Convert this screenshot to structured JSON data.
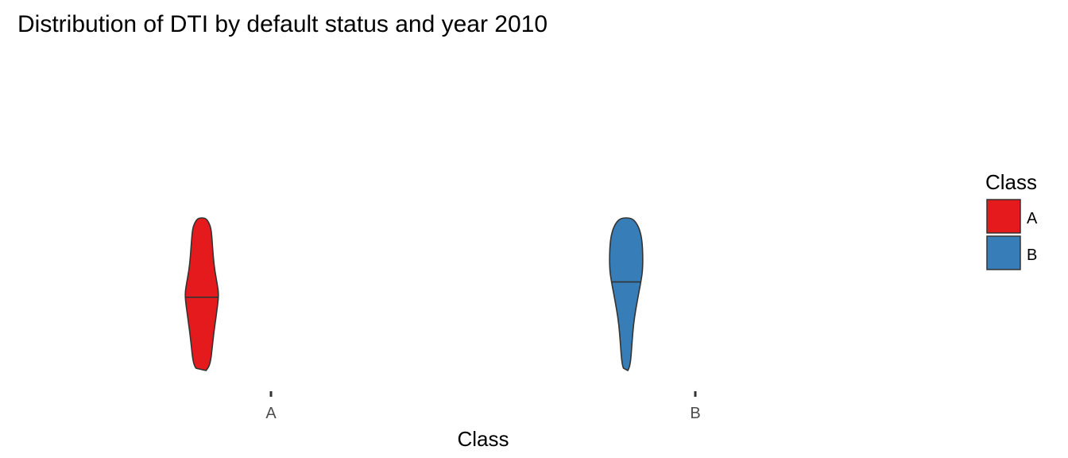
{
  "chart_data": {
    "type": "violin",
    "title": "Distribution of DTI by default status and year 2010",
    "xlabel": "Class",
    "ylabel": "",
    "categories": [
      "A",
      "B"
    ],
    "grid": false,
    "legend": {
      "title": "Class",
      "position": "right",
      "entries": [
        {
          "label": "A",
          "color": "#e41a1c"
        },
        {
          "label": "B",
          "color": "#377eb8"
        }
      ]
    },
    "series": [
      {
        "category": "A",
        "color": "#e41a1c",
        "median": 0.48,
        "density": [
          {
            "y": 0.0,
            "w": 0.25
          },
          {
            "y": 0.03,
            "w": 0.45
          },
          {
            "y": 0.08,
            "w": 0.55
          },
          {
            "y": 0.15,
            "w": 0.62
          },
          {
            "y": 0.25,
            "w": 0.72
          },
          {
            "y": 0.35,
            "w": 0.85
          },
          {
            "y": 0.45,
            "w": 0.97
          },
          {
            "y": 0.5,
            "w": 1.0
          },
          {
            "y": 0.55,
            "w": 0.95
          },
          {
            "y": 0.65,
            "w": 0.78
          },
          {
            "y": 0.75,
            "w": 0.68
          },
          {
            "y": 0.85,
            "w": 0.62
          },
          {
            "y": 0.93,
            "w": 0.55
          },
          {
            "y": 0.97,
            "w": 0.42
          },
          {
            "y": 1.0,
            "w": 0.22
          }
        ]
      },
      {
        "category": "B",
        "color": "#377eb8",
        "median": 0.58,
        "density": [
          {
            "y": 0.0,
            "w": 0.1
          },
          {
            "y": 0.03,
            "w": 0.22
          },
          {
            "y": 0.1,
            "w": 0.3
          },
          {
            "y": 0.2,
            "w": 0.36
          },
          {
            "y": 0.3,
            "w": 0.44
          },
          {
            "y": 0.4,
            "w": 0.57
          },
          {
            "y": 0.5,
            "w": 0.74
          },
          {
            "y": 0.58,
            "w": 0.88
          },
          {
            "y": 0.65,
            "w": 0.98
          },
          {
            "y": 0.75,
            "w": 1.0
          },
          {
            "y": 0.85,
            "w": 0.95
          },
          {
            "y": 0.92,
            "w": 0.82
          },
          {
            "y": 0.97,
            "w": 0.6
          },
          {
            "y": 1.0,
            "w": 0.3
          }
        ]
      }
    ]
  }
}
